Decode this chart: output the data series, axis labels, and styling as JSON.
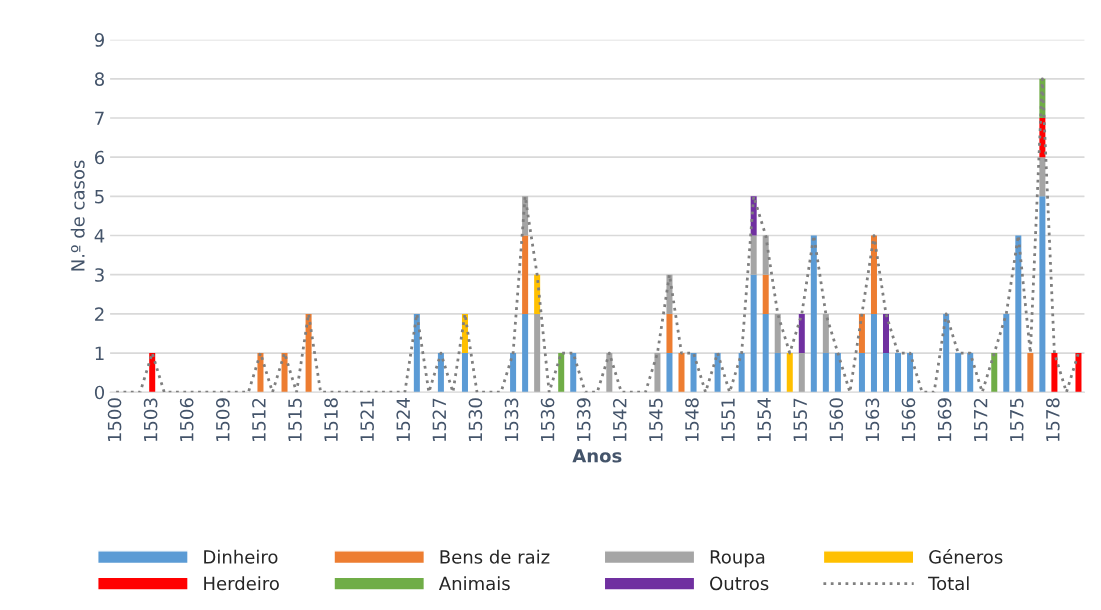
{
  "chart_data": {
    "type": "bar",
    "stacked": true,
    "xlabel": "Anos",
    "ylabel": "N.º de casos",
    "categories": [
      "1500",
      null,
      null,
      "1503",
      null,
      null,
      "1506",
      null,
      null,
      "1509",
      null,
      null,
      "1512",
      null,
      null,
      "1515",
      null,
      null,
      "1518",
      null,
      null,
      "1521",
      null,
      null,
      "1524",
      null,
      null,
      "1527",
      null,
      null,
      "1530",
      null,
      null,
      "1533",
      null,
      null,
      "1536",
      null,
      null,
      "1539",
      null,
      null,
      "1542",
      null,
      null,
      "1545",
      null,
      null,
      "1548",
      null,
      null,
      "1551",
      null,
      null,
      "1554",
      null,
      null,
      "1557",
      null,
      null,
      "1560",
      null,
      null,
      "1563",
      null,
      null,
      "1566",
      null,
      null,
      "1569",
      null,
      null,
      "1572",
      null,
      null,
      "1575",
      null,
      null,
      "1578",
      null,
      null
    ],
    "series": [
      {
        "name": "Dinheiro",
        "color": "#5b9bd5",
        "values": [
          0,
          0,
          0,
          0,
          0,
          0,
          0,
          0,
          0,
          0,
          0,
          0,
          0,
          0,
          0,
          0,
          0,
          0,
          0,
          0,
          0,
          0,
          0,
          0,
          0,
          2,
          0,
          1,
          0,
          1,
          0,
          0,
          0,
          1,
          2,
          0,
          0,
          0,
          1,
          0,
          0,
          0,
          0,
          0,
          0,
          0,
          1,
          0,
          1,
          0,
          1,
          0,
          1,
          3,
          2,
          1,
          0,
          0,
          4,
          1,
          1,
          0,
          1,
          2,
          1,
          1,
          1,
          0,
          0,
          2,
          1,
          1,
          0,
          0,
          2,
          4,
          0,
          5,
          0,
          0,
          0
        ]
      },
      {
        "name": "Bens de raiz",
        "color": "#ed7d31",
        "values": [
          0,
          0,
          0,
          0,
          0,
          0,
          0,
          0,
          0,
          0,
          0,
          0,
          1,
          0,
          1,
          0,
          2,
          0,
          0,
          0,
          0,
          0,
          0,
          0,
          0,
          0,
          0,
          0,
          0,
          0,
          0,
          0,
          0,
          0,
          2,
          0,
          0,
          0,
          0,
          0,
          0,
          0,
          0,
          0,
          0,
          0,
          1,
          1,
          0,
          0,
          0,
          0,
          0,
          0,
          1,
          0,
          0,
          0,
          0,
          0,
          0,
          0,
          1,
          2,
          0,
          0,
          0,
          0,
          0,
          0,
          0,
          0,
          0,
          0,
          0,
          0,
          1,
          0,
          0,
          0,
          0
        ]
      },
      {
        "name": "Roupa",
        "color": "#a5a5a5",
        "values": [
          0,
          0,
          0,
          0,
          0,
          0,
          0,
          0,
          0,
          0,
          0,
          0,
          0,
          0,
          0,
          0,
          0,
          0,
          0,
          0,
          0,
          0,
          0,
          0,
          0,
          0,
          0,
          0,
          0,
          0,
          0,
          0,
          0,
          0,
          1,
          2,
          0,
          0,
          0,
          0,
          0,
          1,
          0,
          0,
          0,
          1,
          1,
          0,
          0,
          0,
          0,
          0,
          0,
          1,
          1,
          1,
          0,
          1,
          0,
          1,
          0,
          0,
          0,
          0,
          0,
          0,
          0,
          0,
          0,
          0,
          0,
          0,
          0,
          0,
          0,
          0,
          0,
          1,
          0,
          0,
          0
        ]
      },
      {
        "name": "Géneros",
        "color": "#ffc000",
        "values": [
          0,
          0,
          0,
          0,
          0,
          0,
          0,
          0,
          0,
          0,
          0,
          0,
          0,
          0,
          0,
          0,
          0,
          0,
          0,
          0,
          0,
          0,
          0,
          0,
          0,
          0,
          0,
          0,
          0,
          1,
          0,
          0,
          0,
          0,
          0,
          1,
          0,
          0,
          0,
          0,
          0,
          0,
          0,
          0,
          0,
          0,
          0,
          0,
          0,
          0,
          0,
          0,
          0,
          0,
          0,
          0,
          1,
          0,
          0,
          0,
          0,
          0,
          0,
          0,
          0,
          0,
          0,
          0,
          0,
          0,
          0,
          0,
          0,
          0,
          0,
          0,
          0,
          0,
          0,
          0,
          0
        ]
      },
      {
        "name": "Herdeiro",
        "color": "#ff0000",
        "values": [
          0,
          0,
          0,
          1,
          0,
          0,
          0,
          0,
          0,
          0,
          0,
          0,
          0,
          0,
          0,
          0,
          0,
          0,
          0,
          0,
          0,
          0,
          0,
          0,
          0,
          0,
          0,
          0,
          0,
          0,
          0,
          0,
          0,
          0,
          0,
          0,
          0,
          0,
          0,
          0,
          0,
          0,
          0,
          0,
          0,
          0,
          0,
          0,
          0,
          0,
          0,
          0,
          0,
          0,
          0,
          0,
          0,
          0,
          0,
          0,
          0,
          0,
          0,
          0,
          0,
          0,
          0,
          0,
          0,
          0,
          0,
          0,
          0,
          0,
          0,
          0,
          0,
          1,
          1,
          0,
          1
        ]
      },
      {
        "name": "Animais",
        "color": "#70ad47",
        "values": [
          0,
          0,
          0,
          0,
          0,
          0,
          0,
          0,
          0,
          0,
          0,
          0,
          0,
          0,
          0,
          0,
          0,
          0,
          0,
          0,
          0,
          0,
          0,
          0,
          0,
          0,
          0,
          0,
          0,
          0,
          0,
          0,
          0,
          0,
          0,
          0,
          0,
          1,
          0,
          0,
          0,
          0,
          0,
          0,
          0,
          0,
          0,
          0,
          0,
          0,
          0,
          0,
          0,
          0,
          0,
          0,
          0,
          0,
          0,
          0,
          0,
          0,
          0,
          0,
          0,
          0,
          0,
          0,
          0,
          0,
          0,
          0,
          0,
          1,
          0,
          0,
          0,
          1,
          0,
          0,
          0
        ]
      },
      {
        "name": "Outros",
        "color": "#7030a0",
        "values": [
          0,
          0,
          0,
          0,
          0,
          0,
          0,
          0,
          0,
          0,
          0,
          0,
          0,
          0,
          0,
          0,
          0,
          0,
          0,
          0,
          0,
          0,
          0,
          0,
          0,
          0,
          0,
          0,
          0,
          0,
          0,
          0,
          0,
          0,
          0,
          0,
          0,
          0,
          0,
          0,
          0,
          0,
          0,
          0,
          0,
          0,
          0,
          0,
          0,
          0,
          0,
          0,
          0,
          1,
          0,
          0,
          0,
          1,
          0,
          0,
          0,
          0,
          0,
          0,
          1,
          0,
          0,
          0,
          0,
          0,
          0,
          0,
          0,
          0,
          0,
          0,
          0,
          0,
          0,
          0,
          0
        ]
      },
      {
        "name": "Total",
        "type": "line",
        "line_style": "dotted",
        "color": "#7f7f7f",
        "values": [
          0,
          0,
          0,
          1,
          0,
          0,
          0,
          0,
          0,
          0,
          0,
          0,
          1,
          0,
          1,
          0,
          2,
          0,
          0,
          0,
          0,
          0,
          0,
          0,
          0,
          2,
          0,
          1,
          0,
          2,
          0,
          0,
          0,
          1,
          5,
          3,
          0,
          1,
          1,
          0,
          0,
          1,
          0,
          0,
          0,
          1,
          3,
          1,
          1,
          0,
          1,
          0,
          1,
          5,
          4,
          2,
          1,
          2,
          4,
          2,
          1,
          0,
          2,
          4,
          2,
          1,
          1,
          0,
          0,
          2,
          1,
          1,
          0,
          1,
          2,
          4,
          1,
          8,
          1,
          0,
          1
        ]
      }
    ],
    "ylim": [
      0,
      9
    ],
    "yticks": [
      0,
      1,
      2,
      3,
      4,
      5,
      6,
      7,
      8,
      9
    ],
    "grid": "y",
    "legend": "bottom"
  }
}
